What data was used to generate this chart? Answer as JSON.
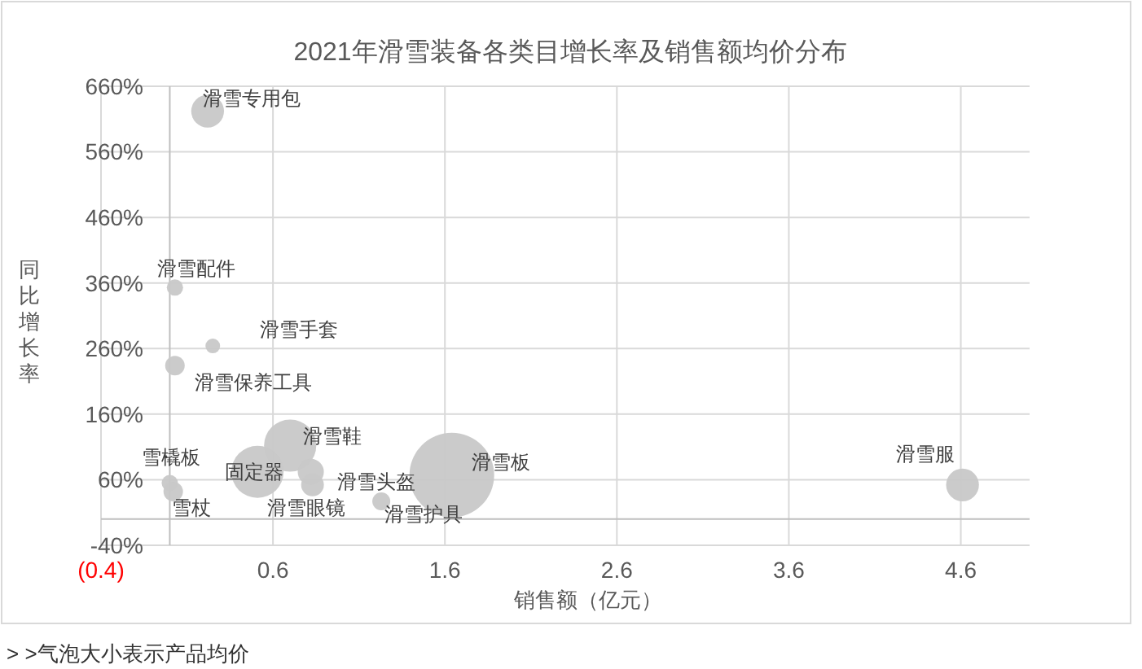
{
  "chart_data": {
    "type": "bubble",
    "title": "2021年滑雪装备各类目增长率及销售额均价分布",
    "xlabel": "销售额（亿元）",
    "ylabel": "同比增长率",
    "xlim": [
      -0.4,
      5.0
    ],
    "xticks": [
      {
        "value": -0.4,
        "label": "(0.4)"
      },
      0.6,
      1.6,
      2.6,
      3.6,
      4.6
    ],
    "ylim": [
      -40,
      660
    ],
    "yticks": [
      {
        "value": -40,
        "label": "-40%"
      },
      {
        "value": 60,
        "label": "60%"
      },
      {
        "value": 160,
        "label": "160%"
      },
      {
        "value": 260,
        "label": "260%"
      },
      {
        "value": 360,
        "label": "360%"
      },
      {
        "value": 460,
        "label": "460%"
      },
      {
        "value": 560,
        "label": "560%"
      },
      {
        "value": 660,
        "label": "660%"
      }
    ],
    "grid": true,
    "series": [
      {
        "color": "#c8c8c8",
        "x": [
          0.22,
          0.03,
          0.25,
          0.03,
          0.7,
          0.51,
          0.82,
          0.83,
          0.0,
          0.02,
          1.23,
          1.64,
          4.61
        ],
        "values": [
          622,
          353,
          264,
          234,
          112,
          72,
          72,
          52,
          55,
          42,
          27,
          67,
          52
        ],
        "sizes": [
          0.15,
          0.037,
          0.03,
          0.053,
          0.38,
          0.38,
          0.095,
          0.072,
          0.037,
          0.053,
          0.045,
          1,
          0.15
        ]
      }
    ],
    "annotations": [
      {
        "text": "滑雪专用包",
        "x": 0.22,
        "y": 622
      },
      {
        "text": "滑雪配件",
        "x": 0.03,
        "y": 353
      },
      {
        "text": "滑雪手套",
        "x": 0.25,
        "y": 264
      },
      {
        "text": "滑雪保养工具",
        "x": 0.03,
        "y": 234
      },
      {
        "text": "滑雪鞋",
        "x": 0.7,
        "y": 112
      },
      {
        "text": "固定器",
        "x": 0.51,
        "y": 72
      },
      {
        "text": "滑雪头盔",
        "x": 0.82,
        "y": 72
      },
      {
        "text": "滑雪眼镜",
        "x": 0.83,
        "y": 52
      },
      {
        "text": "雪橇板",
        "x": 0.0,
        "y": 55
      },
      {
        "text": "雪杖",
        "x": 0.02,
        "y": 42
      },
      {
        "text": "滑雪护具",
        "x": 1.23,
        "y": 27
      },
      {
        "text": "滑雪板",
        "x": 1.64,
        "y": 67
      },
      {
        "text": "滑雪服",
        "x": 4.61,
        "y": 52
      },
      "> >气泡大小表示产品均价"
    ]
  }
}
